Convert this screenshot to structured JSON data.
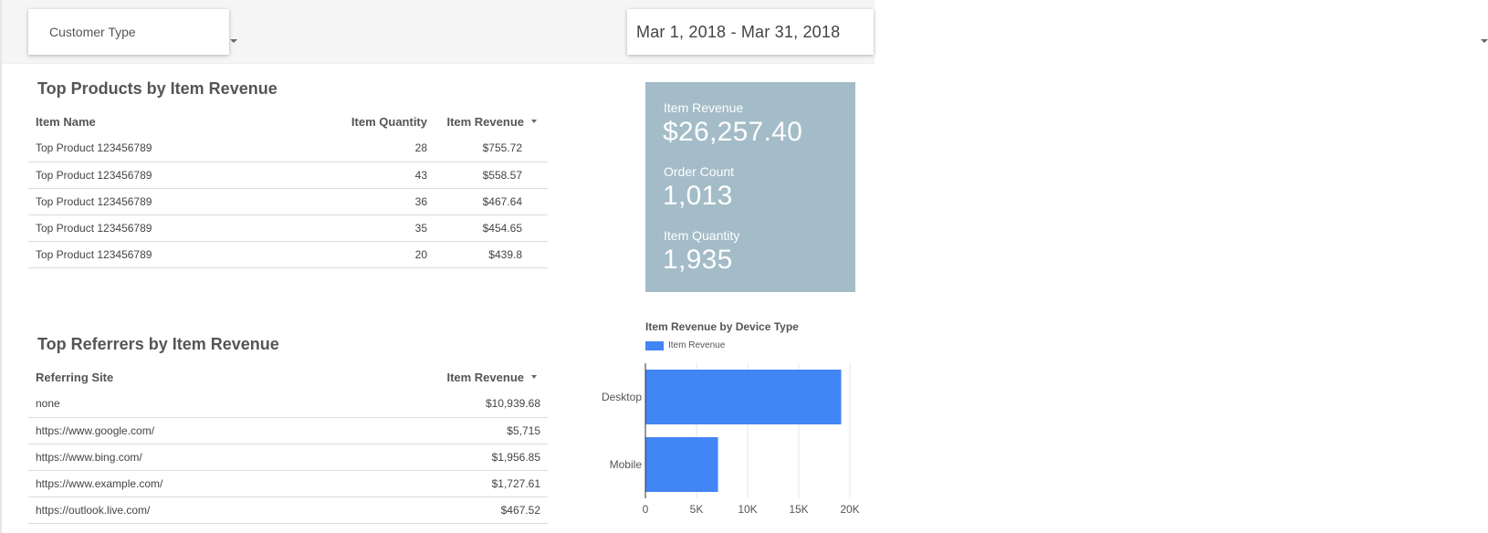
{
  "filters": {
    "customer_type": "Customer Type",
    "date_range": "Mar 1, 2018 - Mar 31, 2018"
  },
  "top_products": {
    "title": "Top Products by Item Revenue",
    "headers": {
      "name": "Item Name",
      "quantity": "Item Quantity",
      "revenue": "Item Revenue"
    },
    "rows": [
      {
        "name": "Top Product 123456789",
        "quantity": "28",
        "revenue": "$755.72"
      },
      {
        "name": "Top Product 123456789",
        "quantity": "43",
        "revenue": "$558.57"
      },
      {
        "name": "Top Product 123456789",
        "quantity": "36",
        "revenue": "$467.64"
      },
      {
        "name": "Top Product 123456789",
        "quantity": "35",
        "revenue": "$454.65"
      },
      {
        "name": "Top Product 123456789",
        "quantity": "20",
        "revenue": "$439.8"
      }
    ]
  },
  "top_referrers": {
    "title": "Top Referrers by Item Revenue",
    "headers": {
      "site": "Referring Site",
      "revenue": "Item Revenue"
    },
    "rows": [
      {
        "site": "none",
        "revenue": "$10,939.68"
      },
      {
        "site": "https://www.google.com/",
        "revenue": "$5,715"
      },
      {
        "site": "https://www.bing.com/",
        "revenue": "$1,956.85"
      },
      {
        "site": "https://www.example.com/",
        "revenue": "$1,727.61"
      },
      {
        "site": "https://outlook.live.com/",
        "revenue": "$467.52"
      }
    ]
  },
  "kpis": {
    "revenue_label": "Item Revenue",
    "revenue_value": "$26,257.40",
    "orders_label": "Order Count",
    "orders_value": "1,013",
    "quantity_label": "Item Quantity",
    "quantity_value": "1,935"
  },
  "colors": {
    "kpi_bg": "#a3bcc8",
    "bar": "#4285f4"
  },
  "chart_data": {
    "type": "bar",
    "orientation": "horizontal",
    "title": "Item Revenue by Device Type",
    "categories": [
      "Desktop",
      "Mobile"
    ],
    "series": [
      {
        "name": "Item Revenue",
        "values": [
          19150,
          7100
        ]
      }
    ],
    "xlim": [
      0,
      20000
    ],
    "xticks": [
      "0",
      "5K",
      "10K",
      "15K",
      "20K"
    ],
    "grid": true,
    "legend": "top-left"
  }
}
